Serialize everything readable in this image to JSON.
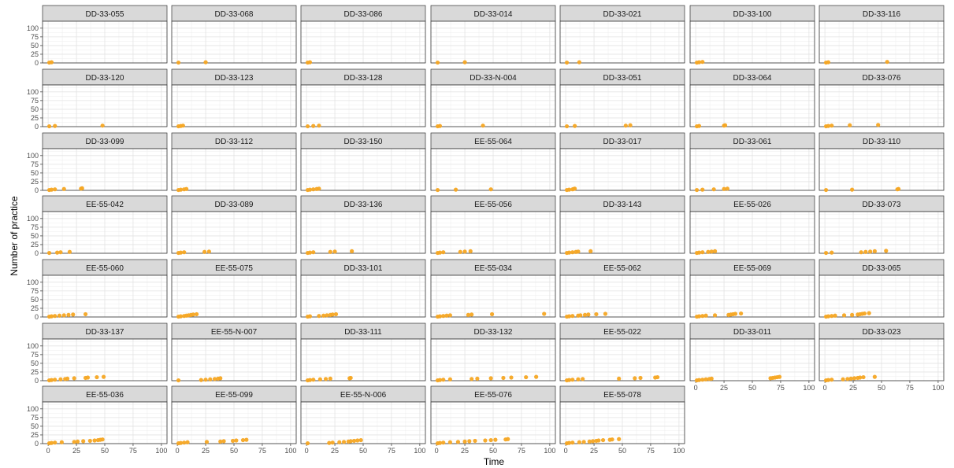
{
  "chart_data": {
    "type": "scatter",
    "title": "",
    "xlabel": "Time",
    "ylabel": "Number of practice",
    "xlim": [
      0,
      100
    ],
    "ylim": [
      0,
      120
    ],
    "x_ticks": [
      0,
      25,
      50,
      75,
      100
    ],
    "y_ticks": [
      0,
      25,
      50,
      75,
      100
    ],
    "x_tick_labels": [
      "0",
      "25",
      "50",
      "75",
      "100"
    ],
    "y_tick_labels": [
      "0",
      "25",
      "50",
      "75",
      "100"
    ],
    "grid": true,
    "legend": "none",
    "point_color": "#F5A623",
    "strip_fill": "#d9d9d9",
    "panels": [
      {
        "name": "DD-33-055",
        "x": [
          1,
          3
        ],
        "y": [
          1,
          2
        ]
      },
      {
        "name": "DD-33-068",
        "x": [
          1,
          25
        ],
        "y": [
          1,
          2
        ]
      },
      {
        "name": "DD-33-086",
        "x": [
          1,
          3
        ],
        "y": [
          1,
          2
        ]
      },
      {
        "name": "DD-33-014",
        "x": [
          1,
          25
        ],
        "y": [
          1,
          2
        ]
      },
      {
        "name": "DD-33-021",
        "x": [
          1,
          12
        ],
        "y": [
          1,
          2
        ]
      },
      {
        "name": "DD-33-100",
        "x": [
          1,
          3,
          6
        ],
        "y": [
          1,
          2,
          3
        ]
      },
      {
        "name": "DD-33-116",
        "x": [
          1,
          3,
          55
        ],
        "y": [
          1,
          2,
          3
        ]
      },
      {
        "name": "DD-33-120",
        "x": [
          1,
          6,
          48
        ],
        "y": [
          1,
          2,
          3
        ]
      },
      {
        "name": "DD-33-123",
        "x": [
          1,
          3,
          5
        ],
        "y": [
          1,
          2,
          3
        ]
      },
      {
        "name": "DD-33-128",
        "x": [
          1,
          6,
          11
        ],
        "y": [
          1,
          2,
          3
        ]
      },
      {
        "name": "DD-33-N-004",
        "x": [
          1,
          3,
          41
        ],
        "y": [
          1,
          2,
          3
        ]
      },
      {
        "name": "DD-33-051",
        "x": [
          1,
          8,
          53,
          57
        ],
        "y": [
          1,
          2,
          3,
          4
        ]
      },
      {
        "name": "DD-33-064",
        "x": [
          1,
          3,
          25,
          26
        ],
        "y": [
          1,
          2,
          3,
          4
        ]
      },
      {
        "name": "DD-33-076",
        "x": [
          1,
          3,
          6,
          22,
          47
        ],
        "y": [
          1,
          2,
          3,
          4,
          5
        ]
      },
      {
        "name": "DD-33-099",
        "x": [
          1,
          3,
          6,
          14,
          29,
          30
        ],
        "y": [
          1,
          2,
          3,
          4,
          5,
          6
        ]
      },
      {
        "name": "DD-33-112",
        "x": [
          1,
          3,
          6,
          8
        ],
        "y": [
          1,
          2,
          3,
          4
        ]
      },
      {
        "name": "DD-33-150",
        "x": [
          1,
          3,
          6,
          9,
          11
        ],
        "y": [
          1,
          2,
          3,
          4,
          5
        ]
      },
      {
        "name": "EE-55-064",
        "x": [
          1,
          17,
          48
        ],
        "y": [
          1,
          2,
          3
        ]
      },
      {
        "name": "DD-33-017",
        "x": [
          1,
          3,
          6,
          7,
          8
        ],
        "y": [
          1,
          2,
          3,
          4,
          5
        ]
      },
      {
        "name": "DD-33-061",
        "x": [
          1,
          6,
          16,
          25,
          28
        ],
        "y": [
          1,
          2,
          3,
          4,
          5
        ]
      },
      {
        "name": "DD-33-110",
        "x": [
          1,
          24,
          64,
          65
        ],
        "y": [
          1,
          2,
          3,
          4
        ]
      },
      {
        "name": "EE-55-042",
        "x": [
          1,
          8,
          11,
          19
        ],
        "y": [
          1,
          2,
          3,
          4
        ]
      },
      {
        "name": "DD-33-089",
        "x": [
          1,
          3,
          6,
          24,
          28
        ],
        "y": [
          1,
          2,
          3,
          4,
          5
        ]
      },
      {
        "name": "DD-33-136",
        "x": [
          1,
          3,
          6,
          21,
          25,
          40
        ],
        "y": [
          1,
          2,
          3,
          4,
          5,
          6
        ]
      },
      {
        "name": "EE-55-056",
        "x": [
          1,
          3,
          6,
          21,
          25,
          30
        ],
        "y": [
          1,
          2,
          3,
          4,
          5,
          6
        ]
      },
      {
        "name": "DD-33-143",
        "x": [
          1,
          3,
          6,
          9,
          11,
          22
        ],
        "y": [
          1,
          2,
          3,
          4,
          5,
          6
        ]
      },
      {
        "name": "EE-55-026",
        "x": [
          1,
          3,
          6,
          11,
          14,
          17
        ],
        "y": [
          1,
          2,
          3,
          4,
          5,
          6
        ]
      },
      {
        "name": "DD-33-073",
        "x": [
          1,
          6,
          32,
          36,
          40,
          44,
          54
        ],
        "y": [
          1,
          2,
          3,
          4,
          5,
          6,
          7
        ]
      },
      {
        "name": "EE-55-060",
        "x": [
          1,
          3,
          6,
          10,
          14,
          18,
          22,
          33
        ],
        "y": [
          1,
          2,
          3,
          4,
          5,
          6,
          7,
          8
        ]
      },
      {
        "name": "EE-55-075",
        "x": [
          1,
          3,
          6,
          8,
          10,
          12,
          14,
          17
        ],
        "y": [
          1,
          2,
          3,
          4,
          5,
          6,
          7,
          8
        ]
      },
      {
        "name": "DD-33-101",
        "x": [
          1,
          3,
          11,
          15,
          18,
          21,
          23,
          26
        ],
        "y": [
          1,
          2,
          3,
          4,
          5,
          6,
          7,
          8
        ]
      },
      {
        "name": "EE-55-034",
        "x": [
          1,
          3,
          6,
          9,
          12,
          28,
          31,
          49,
          95
        ],
        "y": [
          1,
          2,
          3,
          4,
          5,
          6,
          7,
          8,
          9
        ]
      },
      {
        "name": "EE-55-062",
        "x": [
          1,
          3,
          6,
          11,
          13,
          17,
          20,
          27,
          35
        ],
        "y": [
          1,
          2,
          3,
          4,
          5,
          6,
          7,
          8,
          9
        ]
      },
      {
        "name": "EE-55-069",
        "x": [
          1,
          3,
          6,
          9,
          17,
          29,
          31,
          33,
          35,
          40
        ],
        "y": [
          1,
          2,
          3,
          4,
          5,
          6,
          7,
          8,
          9,
          10
        ]
      },
      {
        "name": "DD-33-065",
        "x": [
          1,
          3,
          6,
          9,
          17,
          24,
          29,
          31,
          33,
          35,
          39
        ],
        "y": [
          1,
          2,
          3,
          4,
          5,
          6,
          7,
          8,
          9,
          10,
          11
        ]
      },
      {
        "name": "DD-33-137",
        "x": [
          1,
          3,
          6,
          11,
          15,
          17,
          23,
          33,
          35,
          43,
          49
        ],
        "y": [
          1,
          2,
          3,
          4,
          5,
          6,
          7,
          8,
          9,
          10,
          11
        ]
      },
      {
        "name": "EE-55-N-007",
        "x": [
          1,
          21,
          25,
          29,
          33,
          36,
          38
        ],
        "y": [
          1,
          2,
          3,
          4,
          5,
          6,
          7
        ]
      },
      {
        "name": "DD-33-111",
        "x": [
          1,
          3,
          6,
          12,
          17,
          21,
          38,
          39
        ],
        "y": [
          1,
          2,
          3,
          4,
          5,
          6,
          7,
          8
        ]
      },
      {
        "name": "DD-33-132",
        "x": [
          1,
          3,
          6,
          12,
          31,
          36,
          48,
          59,
          66,
          79,
          88
        ],
        "y": [
          1,
          2,
          3,
          4,
          5,
          6,
          7,
          8,
          9,
          10,
          11
        ]
      },
      {
        "name": "EE-55-022",
        "x": [
          1,
          3,
          6,
          11,
          15,
          47,
          61,
          66,
          79,
          81
        ],
        "y": [
          1,
          2,
          3,
          4,
          5,
          6,
          7,
          8,
          9,
          10
        ]
      },
      {
        "name": "DD-33-011",
        "x": [
          1,
          3,
          6,
          9,
          12,
          14,
          66,
          68,
          70,
          72,
          74
        ],
        "y": [
          1,
          2,
          3,
          4,
          5,
          6,
          7,
          8,
          9,
          10,
          11
        ]
      },
      {
        "name": "DD-33-023",
        "x": [
          1,
          3,
          6,
          16,
          20,
          23,
          26,
          29,
          31,
          34,
          44
        ],
        "y": [
          1,
          2,
          3,
          4,
          5,
          6,
          7,
          8,
          9,
          10,
          11
        ]
      },
      {
        "name": "EE-55-036",
        "x": [
          1,
          3,
          6,
          12,
          23,
          26,
          31,
          37,
          41,
          44,
          46,
          48
        ],
        "y": [
          1,
          2,
          3,
          4,
          5,
          6,
          7,
          8,
          9,
          10,
          11,
          12
        ]
      },
      {
        "name": "EE-55-099",
        "x": [
          1,
          3,
          6,
          9,
          26,
          38,
          41,
          49,
          52,
          58,
          61
        ],
        "y": [
          1,
          2,
          3,
          4,
          5,
          6,
          7,
          8,
          9,
          10,
          11
        ]
      },
      {
        "name": "EE-55-N-006",
        "x": [
          1,
          20,
          23,
          29,
          33,
          37,
          39,
          42,
          45,
          48
        ],
        "y": [
          1,
          2,
          3,
          4,
          5,
          6,
          7,
          8,
          9,
          10
        ]
      },
      {
        "name": "EE-55-076",
        "x": [
          1,
          3,
          6,
          12,
          19,
          25,
          29,
          34,
          43,
          48,
          52,
          61,
          63
        ],
        "y": [
          1,
          2,
          3,
          4,
          5,
          6,
          7,
          8,
          9,
          10,
          11,
          12,
          13
        ]
      },
      {
        "name": "EE-55-078",
        "x": [
          1,
          3,
          6,
          12,
          16,
          21,
          24,
          27,
          29,
          33,
          39,
          41,
          47
        ],
        "y": [
          1,
          2,
          3,
          4,
          5,
          6,
          7,
          8,
          9,
          10,
          11,
          12,
          13
        ]
      }
    ]
  }
}
